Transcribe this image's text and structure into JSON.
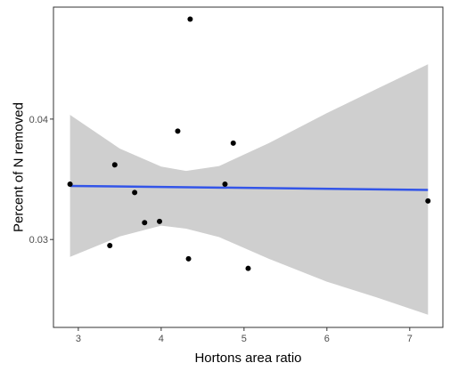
{
  "chart_data": {
    "type": "scatter",
    "title": "",
    "xlabel": "Hortons area ratio",
    "ylabel": "Percent of N removed",
    "xlim": [
      2.7,
      7.4
    ],
    "ylim": [
      0.0227,
      0.0493
    ],
    "xticks": [
      3,
      4,
      5,
      6,
      7
    ],
    "xtick_labels": [
      "3",
      "4",
      "5",
      "6",
      "7"
    ],
    "yticks": [
      0.03,
      0.04
    ],
    "ytick_labels": [
      "0.03",
      "0.04"
    ],
    "grid": false,
    "points": [
      {
        "x": 2.9,
        "y": 0.0346
      },
      {
        "x": 3.38,
        "y": 0.0295
      },
      {
        "x": 3.44,
        "y": 0.0362
      },
      {
        "x": 3.68,
        "y": 0.0339
      },
      {
        "x": 3.8,
        "y": 0.0314
      },
      {
        "x": 3.98,
        "y": 0.0315
      },
      {
        "x": 4.2,
        "y": 0.039
      },
      {
        "x": 4.33,
        "y": 0.0284
      },
      {
        "x": 4.35,
        "y": 0.0483
      },
      {
        "x": 4.77,
        "y": 0.0346
      },
      {
        "x": 4.87,
        "y": 0.038
      },
      {
        "x": 5.05,
        "y": 0.0276
      },
      {
        "x": 7.22,
        "y": 0.0332
      }
    ],
    "trend_line": {
      "x": [
        2.9,
        7.22
      ],
      "y": [
        0.03445,
        0.03412
      ]
    },
    "confidence_band": {
      "x": [
        2.9,
        3.5,
        4.0,
        4.3,
        4.7,
        5.3,
        6.0,
        6.6,
        7.22
      ],
      "upper": [
        0.04035,
        0.03755,
        0.03605,
        0.0357,
        0.0361,
        0.038,
        0.0405,
        0.0425,
        0.04455
      ],
      "lower": [
        0.02855,
        0.03025,
        0.03115,
        0.0309,
        0.0302,
        0.0284,
        0.0265,
        0.0252,
        0.02375
      ]
    },
    "colors": {
      "points": "#000000",
      "trend_line": "#3355e8",
      "band": "#cfcfcf",
      "panel_border": "#333333"
    }
  }
}
